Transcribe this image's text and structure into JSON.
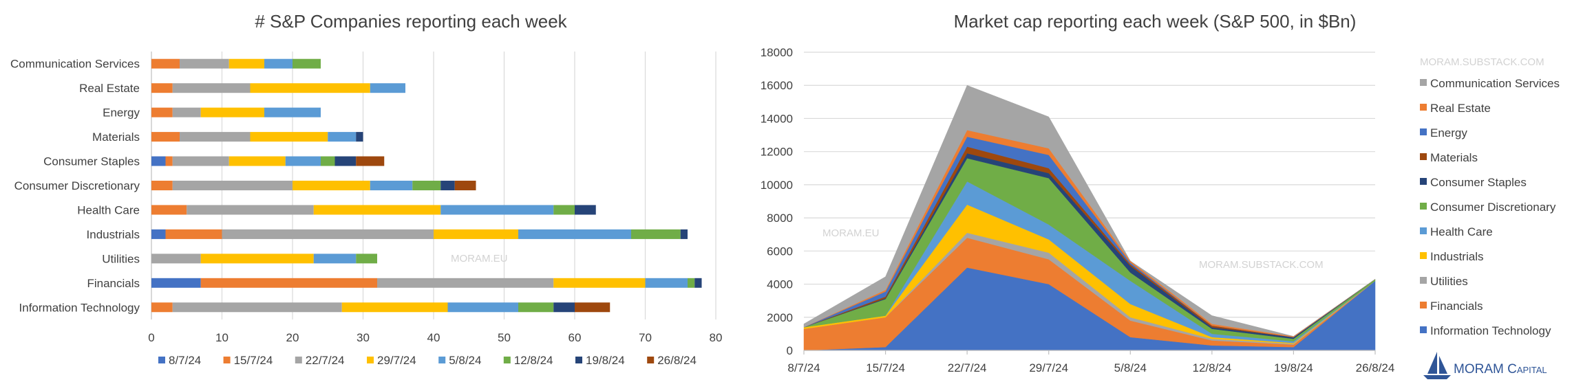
{
  "palette": [
    "#4472c4",
    "#ed7d31",
    "#a5a5a5",
    "#ffc000",
    "#5b9bd5",
    "#70ad47",
    "#264478",
    "#9e480e"
  ],
  "watermarks": {
    "left": "MORAM.EU",
    "right_mid": "MORAM.EU",
    "right_top": "MORAM.SUBSTACK.COM",
    "right_center": "MORAM.SUBSTACK.COM"
  },
  "brand": {
    "name": "MORAM Capital",
    "logo_icon": "sailboat-icon"
  },
  "chart_data": [
    {
      "type": "bar",
      "orientation": "horizontal",
      "stacked": true,
      "title": "# S&P Companies reporting each week",
      "categories": [
        "Communication Services",
        "Real Estate",
        "Energy",
        "Materials",
        "Consumer Staples",
        "Consumer Discretionary",
        "Health Care",
        "Industrials",
        "Utilities",
        "Financials",
        "Information Technology"
      ],
      "xlim": [
        0,
        80
      ],
      "xticks": [
        "0",
        "10",
        "20",
        "30",
        "40",
        "50",
        "60",
        "70",
        "80"
      ],
      "grid": true,
      "legend_position": "bottom",
      "series": [
        {
          "name": "8/7/24",
          "values": [
            0,
            0,
            0,
            0,
            2,
            0,
            0,
            2,
            0,
            7,
            0
          ]
        },
        {
          "name": "15/7/24",
          "values": [
            4,
            3,
            3,
            4,
            1,
            3,
            5,
            8,
            0,
            25,
            3
          ]
        },
        {
          "name": "22/7/24",
          "values": [
            7,
            11,
            4,
            10,
            8,
            17,
            18,
            30,
            7,
            25,
            24
          ]
        },
        {
          "name": "29/7/24",
          "values": [
            5,
            17,
            9,
            11,
            8,
            11,
            18,
            12,
            16,
            13,
            15
          ]
        },
        {
          "name": "5/8/24",
          "values": [
            4,
            5,
            8,
            4,
            5,
            6,
            16,
            16,
            6,
            6,
            10
          ]
        },
        {
          "name": "12/8/24",
          "values": [
            4,
            0,
            0,
            0,
            2,
            4,
            3,
            7,
            3,
            1,
            5
          ]
        },
        {
          "name": "19/8/24",
          "values": [
            0,
            0,
            0,
            1,
            3,
            2,
            3,
            1,
            0,
            1,
            3
          ]
        },
        {
          "name": "26/8/24",
          "values": [
            0,
            0,
            0,
            0,
            4,
            3,
            0,
            0,
            0,
            0,
            5
          ]
        }
      ]
    },
    {
      "type": "area",
      "stacked": true,
      "title": "Market cap reporting each week (S&P 500, in $Bn)",
      "x": [
        "8/7/24",
        "15/7/24",
        "22/7/24",
        "29/7/24",
        "5/8/24",
        "12/8/24",
        "19/8/24",
        "26/8/24"
      ],
      "ylim": [
        0,
        18000
      ],
      "yticks": [
        "0",
        "2000",
        "4000",
        "6000",
        "8000",
        "10000",
        "12000",
        "14000",
        "16000",
        "18000"
      ],
      "grid": true,
      "legend_position": "right",
      "series": [
        {
          "name": "Information Technology",
          "values": [
            0,
            200,
            5000,
            4000,
            800,
            300,
            200,
            4200
          ]
        },
        {
          "name": "Financials",
          "values": [
            1300,
            1800,
            1800,
            1500,
            1000,
            300,
            150,
            0
          ]
        },
        {
          "name": "Utilities",
          "values": [
            0,
            0,
            300,
            400,
            200,
            100,
            50,
            0
          ]
        },
        {
          "name": "Industrials",
          "values": [
            100,
            100,
            1700,
            800,
            800,
            100,
            50,
            0
          ]
        },
        {
          "name": "Health Care",
          "values": [
            0,
            0,
            1400,
            900,
            1400,
            200,
            100,
            0
          ]
        },
        {
          "name": "Consumer Discretionary",
          "values": [
            0,
            1000,
            1400,
            2800,
            500,
            300,
            150,
            100
          ]
        },
        {
          "name": "Consumer Staples",
          "values": [
            0,
            50,
            300,
            300,
            400,
            100,
            100,
            0
          ]
        },
        {
          "name": "Materials",
          "values": [
            0,
            100,
            400,
            300,
            100,
            100,
            0,
            0
          ]
        },
        {
          "name": "Energy",
          "values": [
            0,
            300,
            600,
            800,
            100,
            0,
            0,
            0
          ]
        },
        {
          "name": "Real Estate",
          "values": [
            0,
            100,
            400,
            400,
            100,
            100,
            50,
            0
          ]
        },
        {
          "name": "Communication Services",
          "values": [
            200,
            800,
            2700,
            1900,
            0,
            500,
            0,
            0
          ]
        }
      ]
    }
  ]
}
